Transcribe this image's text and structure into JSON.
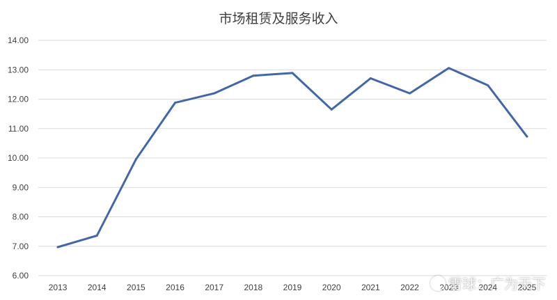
{
  "chart_data": {
    "type": "line",
    "title": "市场租赁及服务收入",
    "x": [
      "2013",
      "2014",
      "2015",
      "2016",
      "2017",
      "2018",
      "2019",
      "2020",
      "2021",
      "2022",
      "2023",
      "2024",
      "2025"
    ],
    "series": [
      {
        "values": [
          6.97,
          7.36,
          9.96,
          11.88,
          12.2,
          12.8,
          12.89,
          11.65,
          12.71,
          12.2,
          13.06,
          12.47,
          10.73
        ]
      }
    ],
    "y_ticks": [
      "6.00",
      "7.00",
      "8.00",
      "9.00",
      "10.00",
      "11.00",
      "12.00",
      "13.00",
      "14.00"
    ],
    "ylim": [
      6,
      14
    ],
    "grid": true,
    "legend": "none",
    "xlabel": "",
    "ylabel": "",
    "line_color": "#4267a8"
  },
  "watermark": {
    "icon": "snowball-logo-icon",
    "text": "雪球：广为天下"
  }
}
